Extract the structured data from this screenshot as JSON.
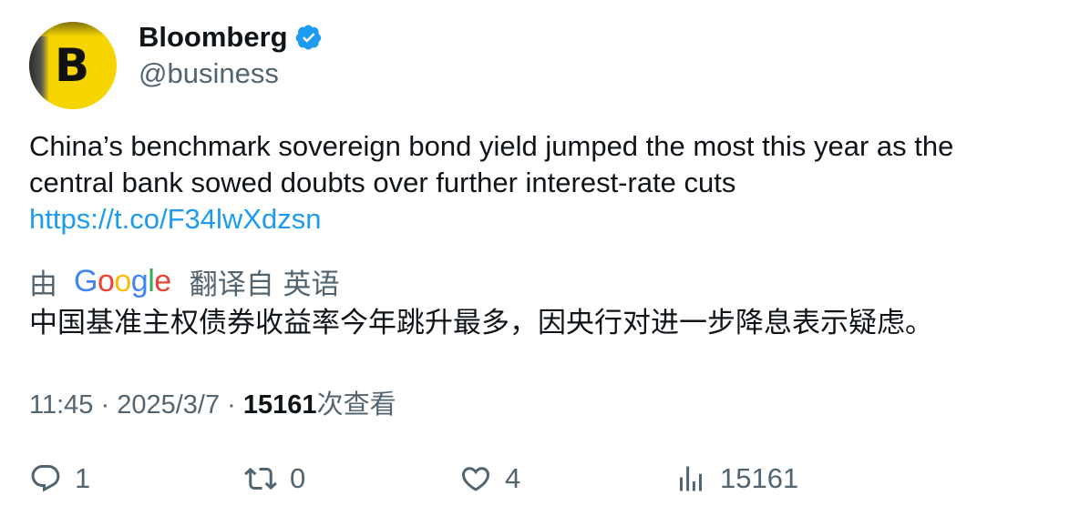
{
  "author": {
    "name": "Bloomberg",
    "handle": "@business",
    "avatar_letter": "B",
    "verified_color": "#1d9bf0",
    "avatar_color": "#f5d400"
  },
  "tweet": {
    "text_line1": "China’s benchmark sovereign bond yield jumped the most this year as the",
    "text_line2": "central bank sowed doubts over further interest-rate cuts",
    "link": "https://t.co/F34lwXdzsn"
  },
  "translation": {
    "prefix": "由",
    "provider": "Google",
    "suffix": "翻译自 英语",
    "text": "中国基准主权债券收益率今年跳升最多，因央行对进一步降息表示疑虑。"
  },
  "meta": {
    "time": "11:45",
    "date": "2025/3/7",
    "views": "15161",
    "views_label": "次查看",
    "separator": "·"
  },
  "actions": {
    "replies": "1",
    "reposts": "0",
    "likes": "4",
    "views": "15161"
  },
  "icons": {
    "verified": "verified-badge-icon",
    "reply": "reply-icon",
    "repost": "repost-icon",
    "like": "heart-icon",
    "views": "views-chart-icon"
  }
}
